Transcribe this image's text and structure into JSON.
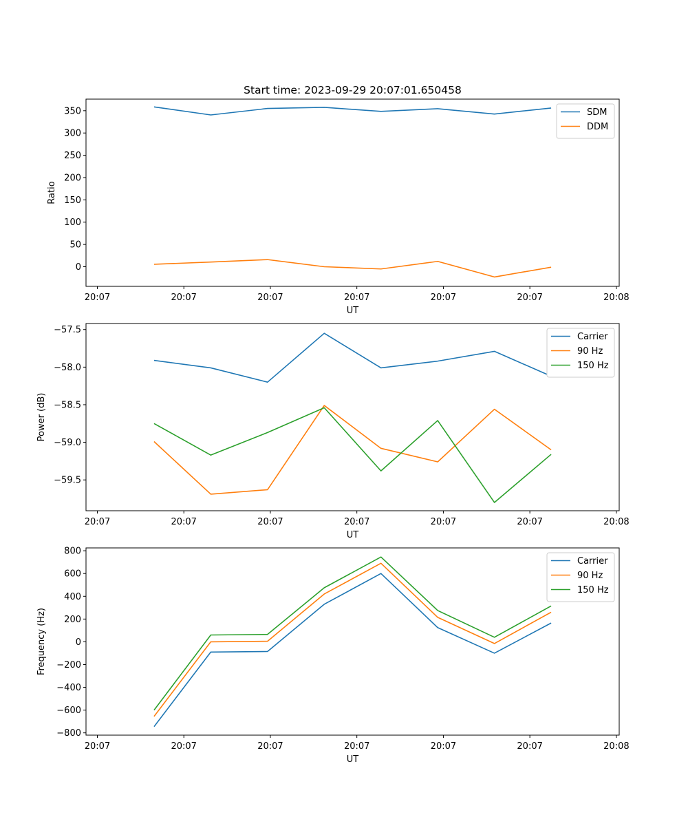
{
  "figure_title": "Start time: 2023-09-29 20:07:01.650458",
  "colors": {
    "blue": "#1f77b4",
    "orange": "#ff7f0e",
    "green": "#2ca02c"
  },
  "chart_data": [
    {
      "type": "line",
      "title": "Start time: 2023-09-29 20:07:01.650458",
      "xlabel": "UT",
      "ylabel": "Ratio",
      "x": [
        1,
        2,
        3,
        4,
        5,
        6,
        7,
        8
      ],
      "xlim": [
        -0.2,
        9.2
      ],
      "xticks": [
        0,
        1.525,
        3.05,
        4.575,
        6.1,
        7.625,
        9.15
      ],
      "xtick_labels": [
        "20:07",
        "20:07",
        "20:07",
        "20:07",
        "20:07",
        "20:07",
        "20:08"
      ],
      "ylim": [
        -44,
        376
      ],
      "yticks": [
        0,
        50,
        100,
        150,
        200,
        250,
        300,
        350
      ],
      "ytick_labels": [
        "0",
        "50",
        "100",
        "150",
        "200",
        "250",
        "300",
        "350"
      ],
      "legend_position": "upper-right",
      "series": [
        {
          "name": "SDM",
          "color": "#1f77b4",
          "values": [
            358.5,
            340.5,
            355,
            357.5,
            348.5,
            354.5,
            342.5,
            356
          ]
        },
        {
          "name": "DDM",
          "color": "#ff7f0e",
          "values": [
            5.5,
            10.5,
            16,
            0,
            -5,
            12,
            -23,
            -1
          ]
        }
      ]
    },
    {
      "type": "line",
      "xlabel": "UT",
      "ylabel": "Power (dB)",
      "x": [
        1,
        2,
        3,
        4,
        5,
        6,
        7,
        8
      ],
      "xlim": [
        -0.2,
        9.2
      ],
      "xticks": [
        0,
        1.525,
        3.05,
        4.575,
        6.1,
        7.625,
        9.15
      ],
      "xtick_labels": [
        "20:07",
        "20:07",
        "20:07",
        "20:07",
        "20:07",
        "20:07",
        "20:08"
      ],
      "ylim": [
        -59.91,
        -57.42
      ],
      "yticks": [
        -59.5,
        -59.0,
        -58.5,
        -58.0,
        -57.5
      ],
      "ytick_labels": [
        "−59.5",
        "−59.0",
        "−58.5",
        "−58.0",
        "−57.5"
      ],
      "legend_position": "upper-right",
      "series": [
        {
          "name": "Carrier",
          "color": "#1f77b4",
          "values": [
            -57.91,
            -58.01,
            -58.2,
            -57.55,
            -58.01,
            -57.92,
            -57.79,
            -58.12
          ]
        },
        {
          "name": "90 Hz",
          "color": "#ff7f0e",
          "values": [
            -58.99,
            -59.69,
            -59.63,
            -58.51,
            -59.08,
            -59.26,
            -58.56,
            -59.1
          ]
        },
        {
          "name": "150 Hz",
          "color": "#2ca02c",
          "values": [
            -58.75,
            -59.17,
            -58.87,
            -58.54,
            -59.38,
            -58.71,
            -59.8,
            -59.16
          ]
        }
      ]
    },
    {
      "type": "line",
      "xlabel": "UT",
      "ylabel": "Frequency (Hz)",
      "x": [
        1,
        2,
        3,
        4,
        5,
        6,
        7,
        8
      ],
      "xlim": [
        -0.2,
        9.2
      ],
      "xticks": [
        0,
        1.525,
        3.05,
        4.575,
        6.1,
        7.625,
        9.15
      ],
      "xtick_labels": [
        "20:07",
        "20:07",
        "20:07",
        "20:07",
        "20:07",
        "20:07",
        "20:08"
      ],
      "ylim": [
        -820,
        825
      ],
      "yticks": [
        -800,
        -600,
        -400,
        -200,
        0,
        200,
        400,
        600,
        800
      ],
      "ytick_labels": [
        "−800",
        "−600",
        "−400",
        "−200",
        "0",
        "200",
        "400",
        "600",
        "800"
      ],
      "legend_position": "upper-right",
      "series": [
        {
          "name": "Carrier",
          "color": "#1f77b4",
          "values": [
            -745,
            -90,
            -85,
            330,
            600,
            125,
            -100,
            165
          ]
        },
        {
          "name": "90 Hz",
          "color": "#ff7f0e",
          "values": [
            -655,
            0,
            5,
            420,
            690,
            215,
            -15,
            260
          ]
        },
        {
          "name": "150 Hz",
          "color": "#2ca02c",
          "values": [
            -600,
            60,
            65,
            475,
            745,
            275,
            40,
            315
          ]
        }
      ]
    }
  ]
}
